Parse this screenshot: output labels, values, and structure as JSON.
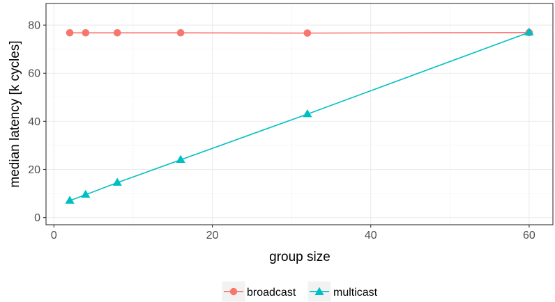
{
  "chart_data": {
    "type": "line",
    "title": "",
    "xlabel": "group size",
    "ylabel": "median latency [k cycles]",
    "xlim": [
      -1,
      63
    ],
    "ylim": [
      -3,
      89
    ],
    "x_ticks": [
      0,
      20,
      40,
      60
    ],
    "y_ticks": [
      0,
      20,
      40,
      60,
      80
    ],
    "x_tick_labels": [
      "0",
      "20",
      "40",
      "60"
    ],
    "y_tick_labels": [
      "0",
      "20",
      "40",
      "60",
      "80"
    ],
    "grid": true,
    "legend_position": "bottom",
    "series": [
      {
        "name": "broadcast",
        "color": "#F8766D",
        "marker": "circle",
        "x": [
          2,
          4,
          8,
          16,
          32,
          60
        ],
        "y": [
          76.8,
          76.8,
          76.8,
          76.8,
          76.7,
          76.9
        ]
      },
      {
        "name": "multicast",
        "color": "#00BFC4",
        "marker": "triangle",
        "x": [
          2,
          4,
          8,
          16,
          32,
          60
        ],
        "y": [
          7.0,
          9.5,
          14.5,
          24.0,
          43.0,
          77.0
        ]
      }
    ]
  }
}
